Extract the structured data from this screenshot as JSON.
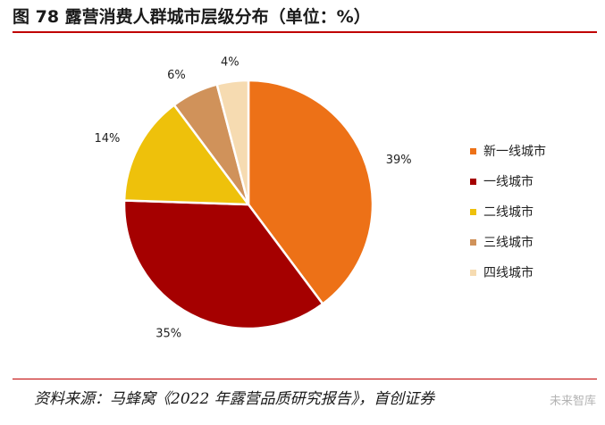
{
  "header": {
    "title": "图 78 露营消费人群城市层级分布（单位：%）"
  },
  "footer": {
    "source": "资料来源：马蜂窝《2022 年露营品质研究报告》，首创证券",
    "watermark": "未来智库"
  },
  "chart_data": {
    "type": "pie",
    "title": "图 78 露营消费人群城市层级分布（单位：%）",
    "slices": [
      {
        "name": "新一线城市",
        "value": 39,
        "label": "39%",
        "color": "#ed7117"
      },
      {
        "name": "一线城市",
        "value": 35,
        "label": "35%",
        "color": "#a50000"
      },
      {
        "name": "二线城市",
        "value": 14,
        "label": "14%",
        "color": "#eec10b"
      },
      {
        "name": "三线城市",
        "value": 6,
        "label": "6%",
        "color": "#d0925a"
      },
      {
        "name": "四线城市",
        "value": 4,
        "label": "4%",
        "color": "#f6dbb1"
      }
    ],
    "legend_position": "right",
    "start_angle": "12 o'clock",
    "direction": "clockwise"
  }
}
